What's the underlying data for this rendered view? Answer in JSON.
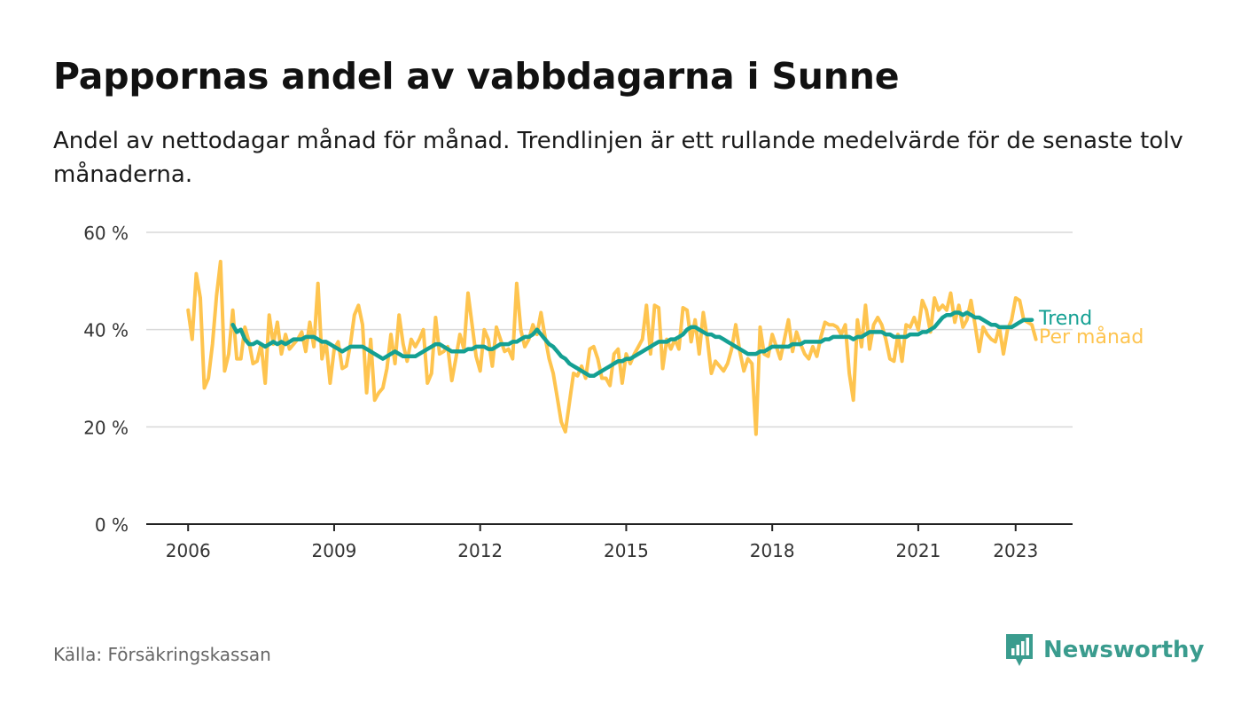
{
  "page": {
    "title": "Pappornas andel av vabbdagarna i Sunne",
    "subtitle": "Andel av nettodagar månad för månad. Trendlinjen är ett rullande medelvärde för de senaste tolv månaderna.",
    "source": "Källa: Försäkringskassan",
    "brand": "Newsworthy"
  },
  "colors": {
    "monthly": "#fec44f",
    "trend": "#14a093",
    "grid": "#d9d9d9",
    "axis": "#222222",
    "brand": "#3a9c8e"
  },
  "chart_data": {
    "type": "line",
    "y_ticks": [
      "0 %",
      "20 %",
      "40 %",
      "60 %"
    ],
    "y_tick_values": [
      0,
      20,
      40,
      60
    ],
    "ylim": [
      0,
      60
    ],
    "x_tick_labels": [
      "2006",
      "2009",
      "2012",
      "2015",
      "2018",
      "2021",
      "2023"
    ],
    "x_tick_values": [
      2006,
      2009,
      2012,
      2015,
      2018,
      2021,
      2023
    ],
    "xlim": [
      2005.14,
      2024.17
    ],
    "grid": true,
    "legend": "inline-right",
    "series": [
      {
        "name": "Per månad",
        "label": "Per månad",
        "color": "#fec44f",
        "start": 2006.0,
        "step_months": 1,
        "values": [
          44,
          38,
          51.5,
          46.5,
          28,
          30,
          37,
          47,
          54,
          31.5,
          35,
          44,
          34,
          34,
          40.5,
          37.5,
          33,
          33.5,
          37,
          29,
          43,
          37,
          41.5,
          35,
          39,
          36,
          37,
          38,
          39.5,
          35.5,
          41.5,
          36.5,
          49.5,
          34,
          37.5,
          29,
          36,
          37.5,
          32,
          32.5,
          37,
          43,
          45,
          41,
          27,
          38,
          25.5,
          27,
          28,
          32,
          39,
          33,
          43,
          37,
          33.5,
          38,
          36.5,
          38,
          40,
          29,
          31,
          42.5,
          35,
          35.5,
          36.5,
          29.5,
          34,
          39,
          36,
          47.5,
          41,
          34.5,
          31.5,
          40,
          38,
          32.5,
          40.5,
          38,
          35.5,
          36,
          34,
          49.5,
          40,
          36.5,
          38,
          41,
          39,
          43.5,
          38.5,
          34,
          31,
          26,
          21,
          19,
          25,
          31,
          30.5,
          32.5,
          30,
          36,
          36.5,
          34,
          30,
          30,
          28.5,
          35,
          36,
          29,
          35,
          33,
          35,
          36.5,
          38,
          45,
          35,
          45,
          44.5,
          32,
          38,
          36,
          38,
          36,
          44.5,
          44,
          37.5,
          42,
          35,
          43.5,
          38,
          31,
          33.5,
          32.5,
          31.5,
          33,
          36,
          41,
          35.5,
          31.5,
          34,
          33,
          18.5,
          40.5,
          35,
          34.5,
          39,
          36.5,
          34,
          38,
          42,
          35.5,
          39.5,
          37,
          35,
          34,
          36.5,
          34.5,
          38.5,
          41.5,
          41,
          41,
          40.5,
          39,
          41,
          31,
          25.5,
          42,
          36.5,
          45,
          36,
          41,
          42.5,
          41,
          38,
          34,
          33.5,
          39,
          33.5,
          41,
          40.5,
          42.5,
          40,
          46,
          44,
          39.5,
          46.5,
          44,
          45,
          44,
          47.5,
          41.5,
          45,
          40.5,
          42,
          46,
          41,
          35.5,
          40.5,
          39,
          38,
          37.5,
          40.5,
          35,
          40,
          42,
          46.5,
          46,
          42,
          41.5,
          41,
          38
        ]
      },
      {
        "name": "Trend",
        "label": "Trend",
        "color": "#14a093",
        "start": 2006.917,
        "step_months": 1,
        "values": [
          41,
          39.5,
          40,
          38,
          37,
          37,
          37.5,
          37,
          36.5,
          37,
          37.5,
          37,
          37.5,
          37,
          37.5,
          38,
          38,
          38,
          38.5,
          38.5,
          38.5,
          38,
          37.5,
          37.5,
          37,
          36.5,
          36,
          35.5,
          36,
          36.5,
          36.5,
          36.5,
          36.5,
          36,
          35.5,
          35,
          34.5,
          34,
          34.5,
          35,
          35.5,
          35,
          34.5,
          34.5,
          34.5,
          34.5,
          35,
          35.5,
          36,
          36.5,
          37,
          37,
          36.5,
          36,
          35.5,
          35.5,
          35.5,
          35.5,
          36,
          36,
          36.5,
          36.5,
          36.5,
          36,
          36,
          36.5,
          37,
          37,
          37,
          37.5,
          37.5,
          38,
          38.5,
          38.5,
          39,
          40,
          39,
          38,
          37,
          36.5,
          35.5,
          34.5,
          34,
          33,
          32.5,
          32,
          31.5,
          31,
          30.5,
          30.5,
          31,
          31.5,
          32,
          32.5,
          33,
          33.5,
          33.5,
          34,
          34,
          34.5,
          35,
          35.5,
          36,
          36.5,
          37,
          37.5,
          37.5,
          37.5,
          38,
          38,
          38.5,
          39,
          40,
          40.5,
          40.5,
          40,
          39.5,
          39,
          39,
          38.5,
          38.5,
          38,
          37.5,
          37,
          36.5,
          36,
          35.5,
          35,
          35,
          35,
          35.5,
          35.5,
          36,
          36.5,
          36.5,
          36.5,
          36.5,
          36.5,
          37,
          37,
          37,
          37.5,
          37.5,
          37.5,
          37.5,
          37.5,
          38,
          38,
          38.5,
          38.5,
          38.5,
          38.5,
          38.5,
          38,
          38.5,
          38.5,
          39,
          39.5,
          39.5,
          39.5,
          39.5,
          39,
          39,
          38.5,
          38.5,
          38.5,
          38.5,
          39,
          39,
          39,
          39.5,
          39.5,
          40,
          40.5,
          41.5,
          42.5,
          43,
          43,
          43.5,
          43.5,
          43,
          43.5,
          43,
          42.5,
          42.5,
          42,
          41.5,
          41,
          41,
          40.5,
          40.5,
          40.5,
          40.5,
          41,
          41.5,
          42,
          42,
          42
        ]
      }
    ]
  }
}
